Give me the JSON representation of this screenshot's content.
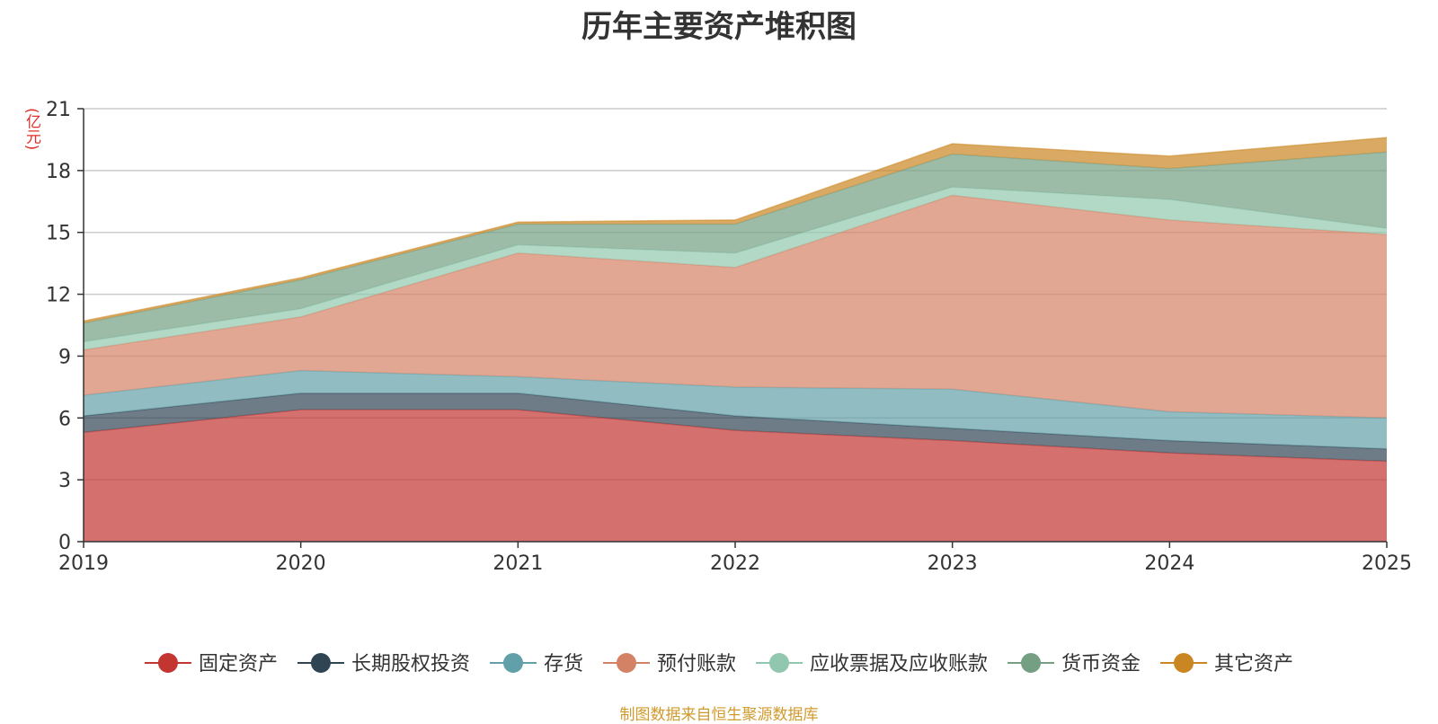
{
  "chart_data": {
    "type": "area",
    "stacked": true,
    "title": "历年主要资产堆积图",
    "ylabel": "(亿元)",
    "x": [
      "2019",
      "2020",
      "2021",
      "2022",
      "2023",
      "2024",
      "2025"
    ],
    "ylim": [
      0,
      21
    ],
    "yticks": [
      0,
      3,
      6,
      9,
      12,
      15,
      18,
      21
    ],
    "grid": true,
    "legend_position": "bottom",
    "series": [
      {
        "name": "固定资产",
        "color": "#c23531",
        "values": [
          5.3,
          6.4,
          6.4,
          5.4,
          4.9,
          4.3,
          3.9
        ]
      },
      {
        "name": "长期股权投资",
        "color": "#2f4554",
        "values": [
          0.8,
          0.8,
          0.8,
          0.7,
          0.6,
          0.6,
          0.6
        ]
      },
      {
        "name": "存货",
        "color": "#61a0a8",
        "values": [
          1.0,
          1.1,
          0.8,
          1.4,
          1.9,
          1.4,
          1.5
        ]
      },
      {
        "name": "预付账款",
        "color": "#d48265",
        "values": [
          2.2,
          2.6,
          6.0,
          5.8,
          9.4,
          9.3,
          8.9
        ]
      },
      {
        "name": "应收票据及应收账款",
        "color": "#91c7ae",
        "values": [
          0.4,
          0.4,
          0.4,
          0.7,
          0.4,
          1.0,
          0.3
        ]
      },
      {
        "name": "货币资金",
        "color": "#749f83",
        "values": [
          0.9,
          1.4,
          1.0,
          1.4,
          1.6,
          1.5,
          3.7
        ]
      },
      {
        "name": "其它资产",
        "color": "#ca8622",
        "values": [
          0.1,
          0.1,
          0.1,
          0.2,
          0.5,
          0.6,
          0.7
        ]
      }
    ]
  },
  "source_note": "制图数据来自恒生聚源数据库"
}
